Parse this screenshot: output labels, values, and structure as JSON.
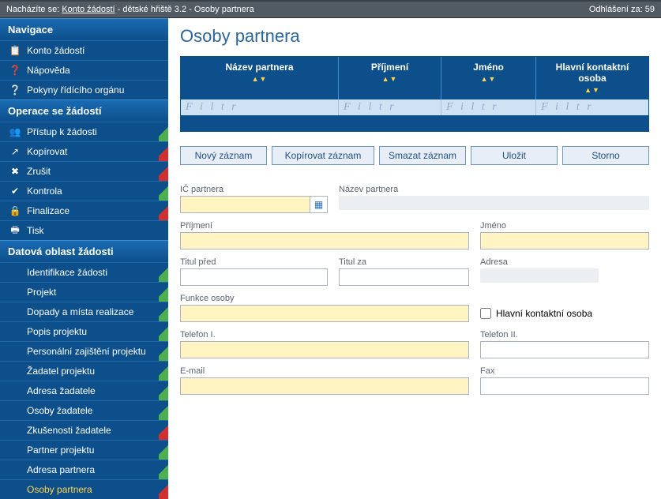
{
  "topbar": {
    "prefix": "Nacházíte se: ",
    "link": "Konto žádostí",
    "suffix": " - dětské hřiště 3.2 - Osoby partnera",
    "logout": "Odhlášení za: 59"
  },
  "sidebar": {
    "sec1": "Navigace",
    "nav1": [
      {
        "label": "Konto žádostí",
        "icon": "📋",
        "stripe": ""
      },
      {
        "label": "Nápověda",
        "icon": "❓",
        "stripe": ""
      },
      {
        "label": "Pokyny řídícího orgánu",
        "icon": "❔",
        "stripe": ""
      }
    ],
    "sec2": "Operace se žádostí",
    "nav2": [
      {
        "label": "Přístup k žádosti",
        "icon": "👥",
        "stripe": "green"
      },
      {
        "label": "Kopírovat",
        "icon": "↗",
        "stripe": "red"
      },
      {
        "label": "Zrušit",
        "icon": "✖",
        "stripe": "red"
      },
      {
        "label": "Kontrola",
        "icon": "✔",
        "stripe": "green"
      },
      {
        "label": "Finalizace",
        "icon": "🔒",
        "stripe": "red"
      },
      {
        "label": "Tisk",
        "icon": "🖶",
        "stripe": ""
      }
    ],
    "sec3": "Datová oblast žádosti",
    "nav3": [
      {
        "label": "Identifikace žádosti",
        "stripe": "green"
      },
      {
        "label": "Projekt",
        "stripe": "green"
      },
      {
        "label": "Dopady a místa realizace",
        "stripe": "green"
      },
      {
        "label": "Popis projektu",
        "stripe": "green"
      },
      {
        "label": "Personální zajištění projektu",
        "stripe": "green"
      },
      {
        "label": "Žadatel projektu",
        "stripe": "green"
      },
      {
        "label": "Adresa žadatele",
        "stripe": "green"
      },
      {
        "label": "Osoby žadatele",
        "stripe": "green"
      },
      {
        "label": "Zkušenosti žadatele",
        "stripe": "red"
      },
      {
        "label": "Partner projektu",
        "stripe": "green"
      },
      {
        "label": "Adresa partnera",
        "stripe": "green"
      },
      {
        "label": "Osoby partnera",
        "stripe": "red",
        "active": true
      }
    ]
  },
  "page": {
    "title": "Osoby partnera"
  },
  "grid": {
    "headers": [
      "Název partnera",
      "Příjmení",
      "Jméno",
      "Hlavní kontaktní osoba"
    ],
    "filter": "F i l t r"
  },
  "buttons": {
    "new": "Nový záznam",
    "copy": "Kopírovat záznam",
    "delete": "Smazat záznam",
    "save": "Uložit",
    "cancel": "Storno"
  },
  "form": {
    "ic": "IČ partnera",
    "nazev": "Název partnera",
    "prijmeni": "Příjmení",
    "jmeno": "Jméno",
    "titulpred": "Titul před",
    "titulza": "Titul za",
    "adresa": "Adresa",
    "funkce": "Funkce osoby",
    "hko": "Hlavní kontaktní osoba",
    "tel1": "Telefon I.",
    "tel2": "Telefon II.",
    "email": "E-mail",
    "fax": "Fax"
  }
}
